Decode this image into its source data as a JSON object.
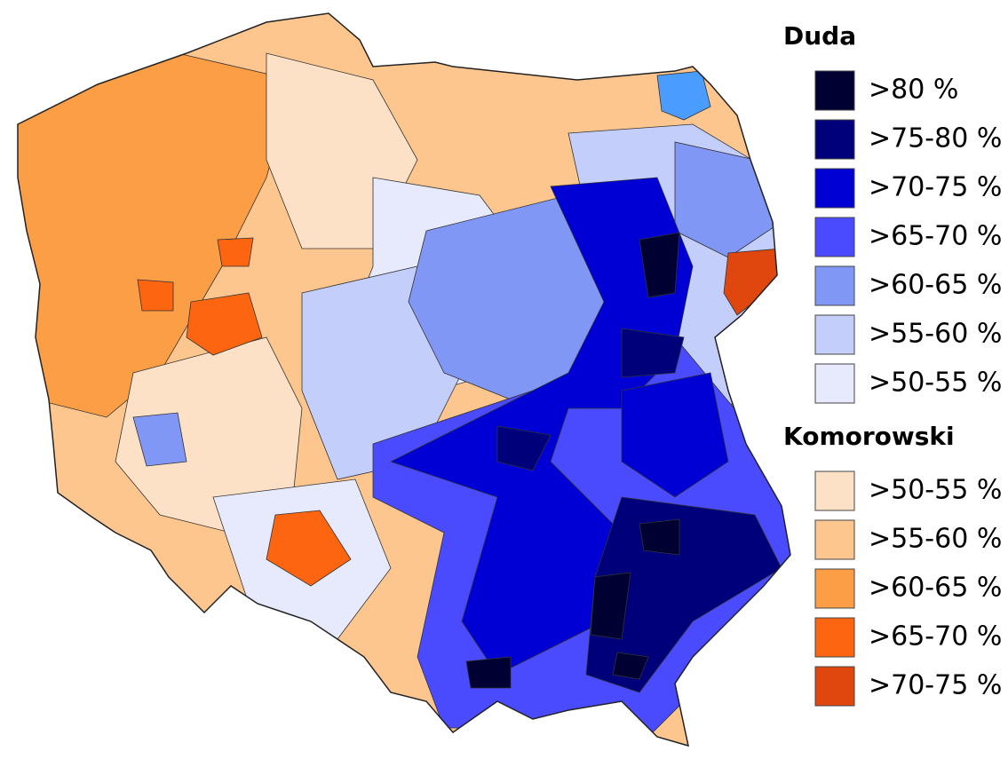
{
  "legend": {
    "groups": [
      {
        "title": "Duda",
        "items": [
          {
            "label": ">80 %",
            "color": "#000033"
          },
          {
            "label": ">75-80 %",
            "color": "#00007a"
          },
          {
            "label": ">70-75 %",
            "color": "#0000d4"
          },
          {
            "label": ">65-70 %",
            "color": "#4a4aff"
          },
          {
            "label": ">60-65 %",
            "color": "#8197f6"
          },
          {
            "label": ">55-60 %",
            "color": "#c4cefb"
          },
          {
            "label": ">50-55 %",
            "color": "#e7e9fd"
          }
        ]
      },
      {
        "title": "Komorowski",
        "items": [
          {
            "label": ">50-55 %",
            "color": "#fde1c6"
          },
          {
            "label": ">55-60 %",
            "color": "#fdc68f"
          },
          {
            "label": ">60-65 %",
            "color": "#fb9e45"
          },
          {
            "label": ">65-70 %",
            "color": "#fd6511"
          },
          {
            "label": ">70-75 %",
            "color": "#e0470e"
          }
        ]
      }
    ]
  }
}
